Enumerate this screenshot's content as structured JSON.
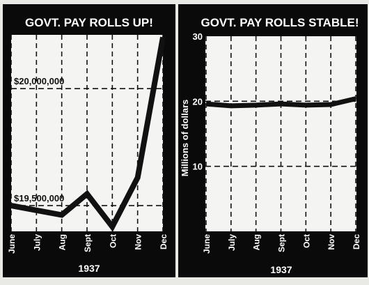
{
  "colors": {
    "panel": "#0a0a0a",
    "plot": "#f4f4f2",
    "ink": "#111111",
    "label": "#ffffff",
    "page": "#e9e9e6"
  },
  "chart_data": [
    {
      "type": "line",
      "title": "GOVT. PAY ROLLS UP!",
      "xlabel": "1937",
      "ylabel": "",
      "categories": [
        "June",
        "July",
        "Aug",
        "Sept",
        "Oct",
        "Nov",
        "Dec"
      ],
      "series": [
        {
          "values": [
            19500000,
            19480000,
            19460000,
            19550000,
            19410000,
            19620000,
            20220000
          ]
        }
      ],
      "ylim": [
        19390000,
        20230000
      ],
      "y_gridlines": [
        {
          "value": 20000000,
          "label": "$20,000,000"
        },
        {
          "value": 19500000,
          "label": "$19,500,000"
        }
      ],
      "grid": true,
      "legend": "none"
    },
    {
      "type": "line",
      "title": "GOVT. PAY ROLLS STABLE!",
      "xlabel": "1937",
      "ylabel": "Millions of dollars",
      "categories": [
        "June",
        "July",
        "Aug",
        "Sept",
        "Oct",
        "Nov",
        "Dec"
      ],
      "series": [
        {
          "values": [
            19.6,
            19.3,
            19.4,
            19.6,
            19.4,
            19.5,
            20.4
          ]
        }
      ],
      "ylim": [
        0,
        30
      ],
      "yticks": [
        "30",
        "20",
        "10"
      ],
      "y_gridline_values": [
        20,
        10
      ],
      "grid": true,
      "legend": "none"
    }
  ]
}
